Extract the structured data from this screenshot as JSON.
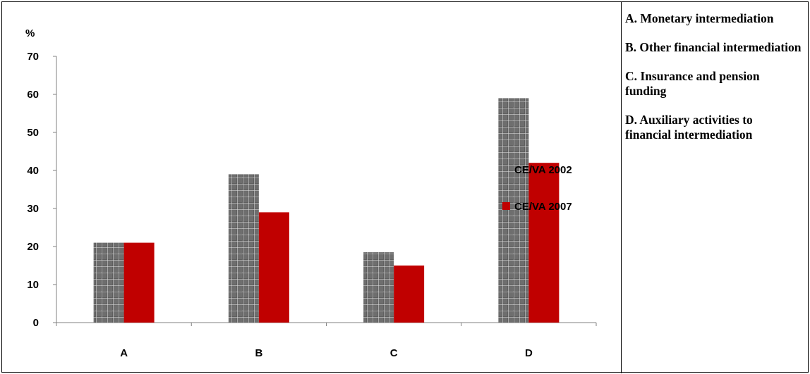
{
  "chart_data": {
    "type": "bar",
    "ylabel": "%",
    "ylim": [
      0,
      70
    ],
    "yticks": [
      0,
      10,
      20,
      30,
      40,
      50,
      60,
      70
    ],
    "categories": [
      "A",
      "B",
      "C",
      "D"
    ],
    "series": [
      {
        "name": "CE/VA 2002",
        "values": [
          21,
          39,
          18.5,
          59
        ],
        "color": "#595959",
        "pattern": "grid"
      },
      {
        "name": "CE/VA 2007",
        "values": [
          21,
          29,
          15,
          42
        ],
        "color": "#c00000",
        "pattern": "solid"
      }
    ],
    "legend_position": "right",
    "grid": false
  },
  "notes": [
    "A.  Monetary intermediation",
    "B.  Other financial intermediation",
    "C.  Insurance and pension funding",
    "D.  Auxiliary activities to financial intermediation"
  ]
}
